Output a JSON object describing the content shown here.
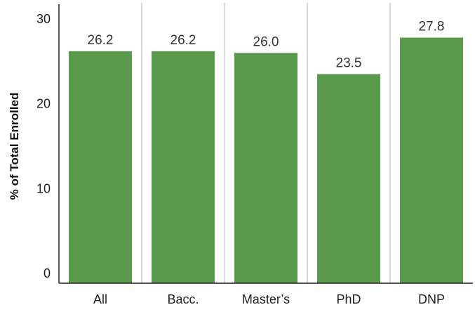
{
  "chart_data": {
    "type": "bar",
    "categories": [
      "All",
      "Bacc.",
      "Master’s",
      "PhD",
      "DNP"
    ],
    "values": [
      26.2,
      26.2,
      26.0,
      23.5,
      27.8
    ],
    "value_labels": [
      "26.2",
      "26.2",
      "26.0",
      "23.5",
      "27.8"
    ],
    "title": "",
    "xlabel": "",
    "ylabel": "% of Total Enrolled",
    "ylim": [
      0,
      30
    ],
    "yticks": [
      0,
      10,
      20,
      30
    ],
    "grid": "vertical separators between categories",
    "legend": "none"
  },
  "colors": {
    "bar": "#5a9a4c",
    "separator": "#cccccc",
    "axis": "#222222"
  }
}
